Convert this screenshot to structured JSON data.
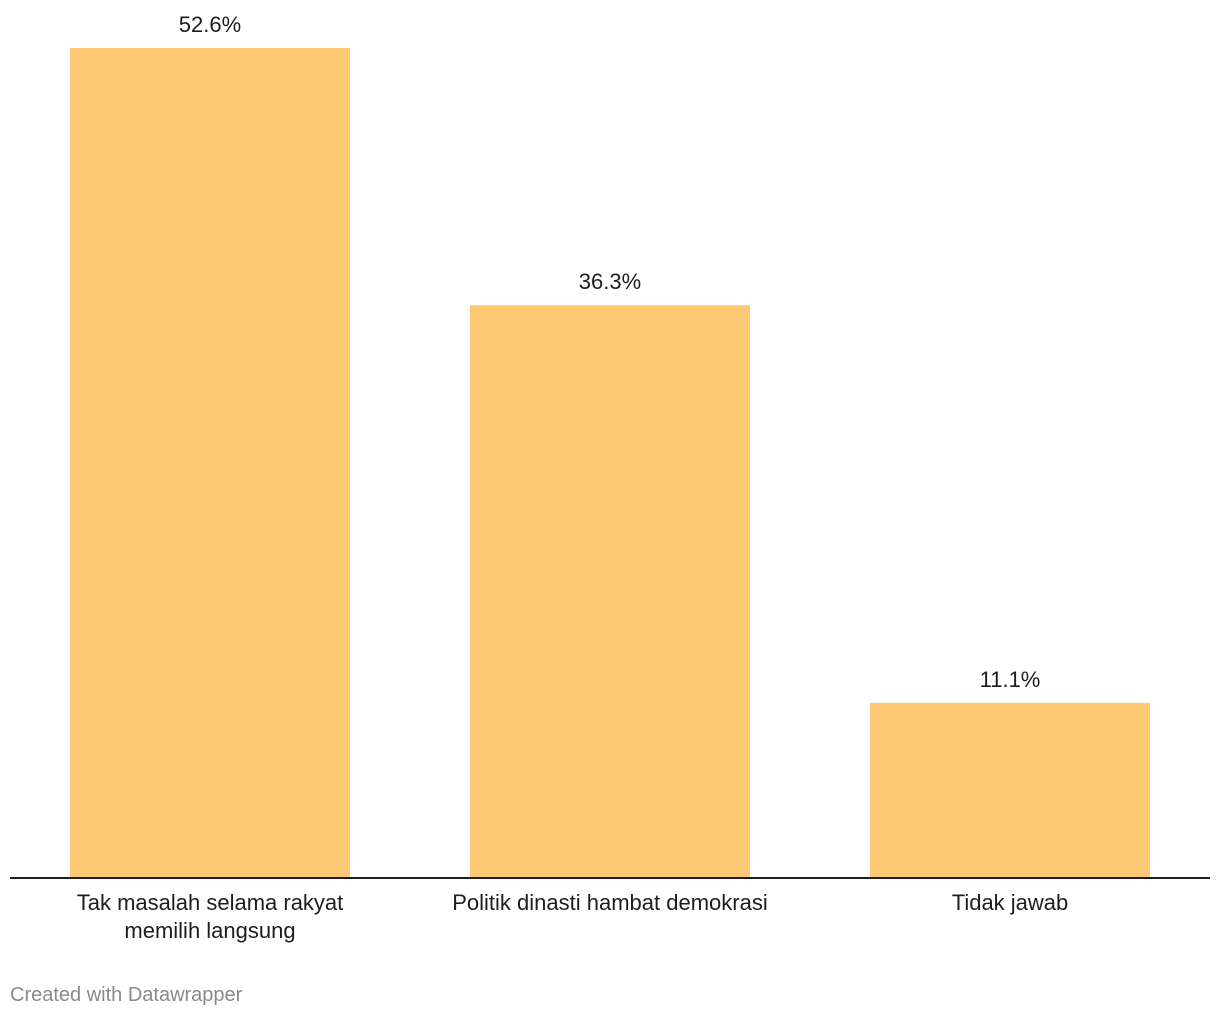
{
  "chart_data": {
    "type": "bar",
    "categories": [
      [
        "Tak masalah selama rakyat",
        "memilih langsung"
      ],
      [
        "Politik dinasti hambat demokrasi"
      ],
      [
        "Tidak jawab"
      ]
    ],
    "values": [
      52.6,
      36.3,
      11.1
    ],
    "value_labels": [
      "52.6%",
      "36.3%",
      "11.1%"
    ],
    "value_suffix": "%",
    "bar_color": "#fdc874",
    "axis_color": "#1d1d1d",
    "ylim": [
      0,
      52.6
    ],
    "grid": false,
    "legend": "none"
  },
  "footer": {
    "credit": "Created with Datawrapper"
  }
}
